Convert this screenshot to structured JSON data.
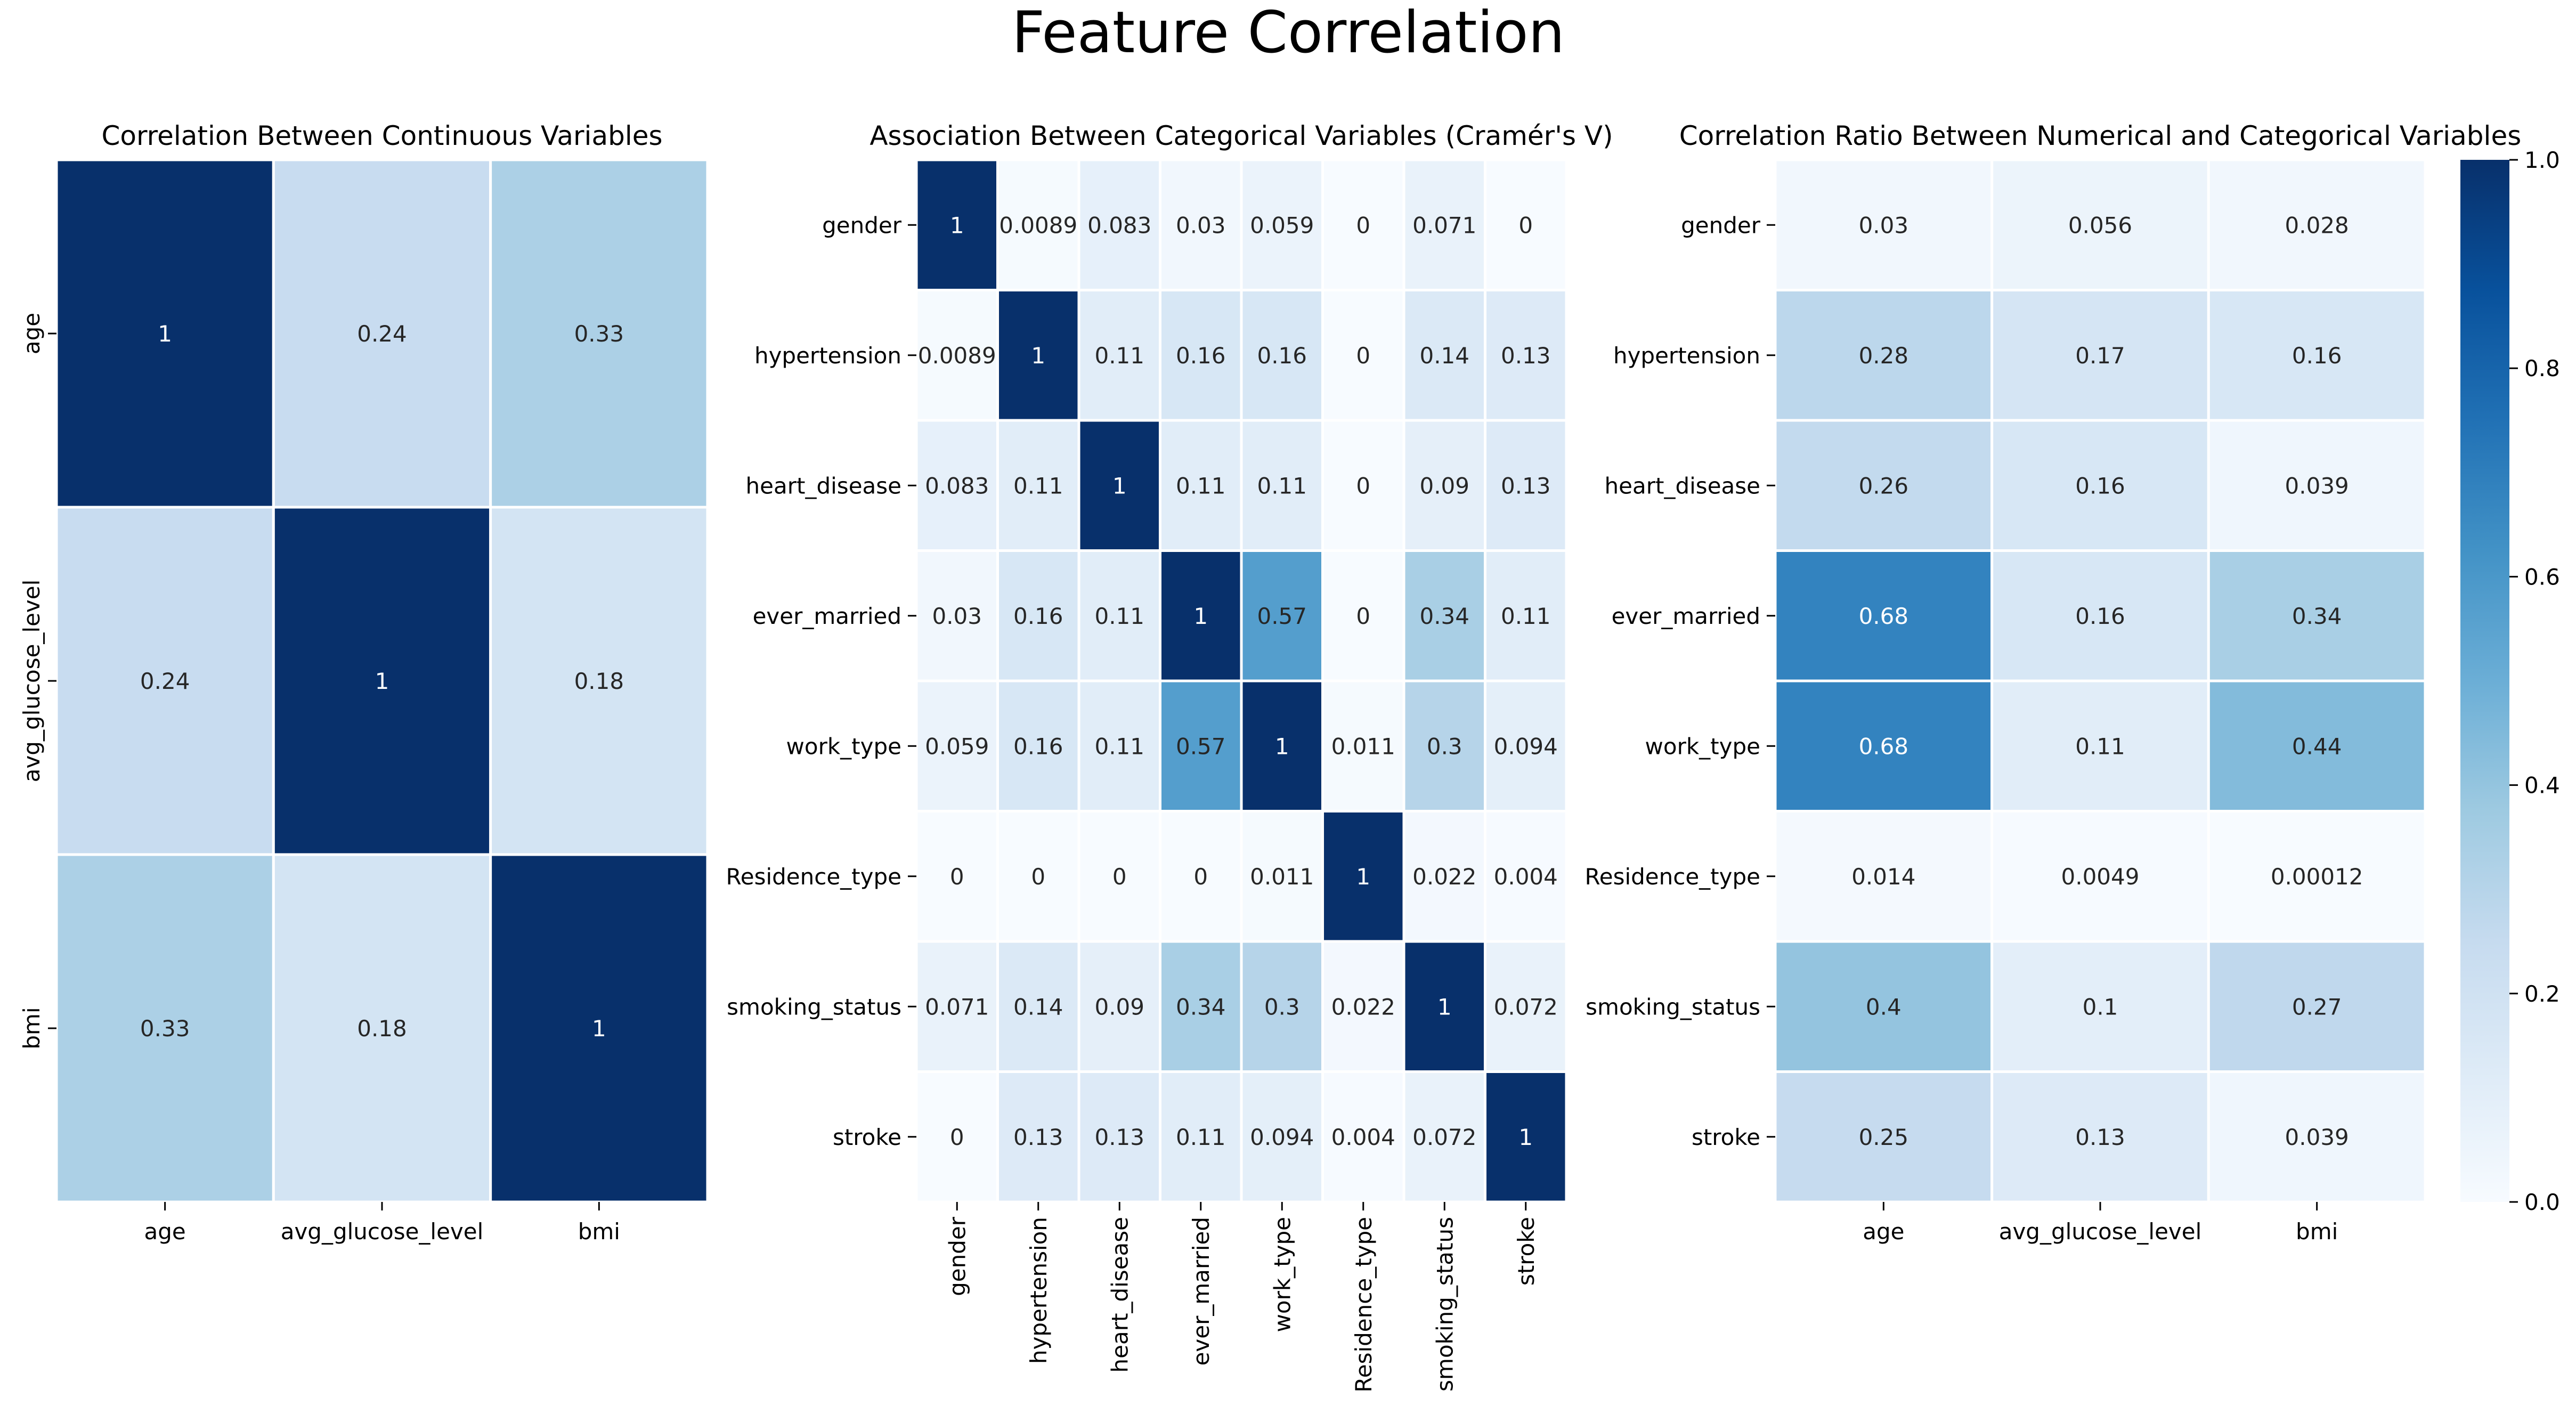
{
  "figure": {
    "title": "Feature Correlation"
  },
  "chart_data": [
    {
      "type": "heatmap",
      "title": "Correlation Between Continuous Variables",
      "x_categories": [
        "age",
        "avg_glucose_level",
        "bmi"
      ],
      "y_categories": [
        "age",
        "avg_glucose_level",
        "bmi"
      ],
      "values": [
        [
          1,
          0.24,
          0.33
        ],
        [
          0.24,
          1,
          0.18
        ],
        [
          0.33,
          0.18,
          1
        ]
      ],
      "labels": [
        [
          "1",
          "0.24",
          "0.33"
        ],
        [
          "0.24",
          "1",
          "0.18"
        ],
        [
          "0.33",
          "0.18",
          "1"
        ]
      ],
      "vmin": 0,
      "vmax": 1,
      "colormap": "Blues",
      "xlabel": "",
      "ylabel": ""
    },
    {
      "type": "heatmap",
      "title": "Association Between Categorical Variables (Cramér's V)",
      "x_categories": [
        "gender",
        "hypertension",
        "heart_disease",
        "ever_married",
        "work_type",
        "Residence_type",
        "smoking_status",
        "stroke"
      ],
      "y_categories": [
        "gender",
        "hypertension",
        "heart_disease",
        "ever_married",
        "work_type",
        "Residence_type",
        "smoking_status",
        "stroke"
      ],
      "values": [
        [
          1,
          0.0089,
          0.083,
          0.03,
          0.059,
          0,
          0.071,
          0
        ],
        [
          0.0089,
          1,
          0.11,
          0.16,
          0.16,
          0,
          0.14,
          0.13
        ],
        [
          0.083,
          0.11,
          1,
          0.11,
          0.11,
          0,
          0.09,
          0.13
        ],
        [
          0.03,
          0.16,
          0.11,
          1,
          0.57,
          0,
          0.34,
          0.11
        ],
        [
          0.059,
          0.16,
          0.11,
          0.57,
          1,
          0.011,
          0.3,
          0.094
        ],
        [
          0,
          0,
          0,
          0,
          0.011,
          1,
          0.022,
          0.004
        ],
        [
          0.071,
          0.14,
          0.09,
          0.34,
          0.3,
          0.022,
          1,
          0.072
        ],
        [
          0,
          0.13,
          0.13,
          0.11,
          0.094,
          0.004,
          0.072,
          1
        ]
      ],
      "labels": [
        [
          "1",
          "0.0089",
          "0.083",
          "0.03",
          "0.059",
          "0",
          "0.071",
          "0"
        ],
        [
          "0.0089",
          "1",
          "0.11",
          "0.16",
          "0.16",
          "0",
          "0.14",
          "0.13"
        ],
        [
          "0.083",
          "0.11",
          "1",
          "0.11",
          "0.11",
          "0",
          "0.09",
          "0.13"
        ],
        [
          "0.03",
          "0.16",
          "0.11",
          "1",
          "0.57",
          "0",
          "0.34",
          "0.11"
        ],
        [
          "0.059",
          "0.16",
          "0.11",
          "0.57",
          "1",
          "0.011",
          "0.3",
          "0.094"
        ],
        [
          "0",
          "0",
          "0",
          "0",
          "0.011",
          "1",
          "0.022",
          "0.004"
        ],
        [
          "0.071",
          "0.14",
          "0.09",
          "0.34",
          "0.3",
          "0.022",
          "1",
          "0.072"
        ],
        [
          "0",
          "0.13",
          "0.13",
          "0.11",
          "0.094",
          "0.004",
          "0.072",
          "1"
        ]
      ],
      "vmin": 0,
      "vmax": 1,
      "colormap": "Blues",
      "xlabel": "",
      "ylabel": ""
    },
    {
      "type": "heatmap",
      "title": "Correlation Ratio Between Numerical and Categorical Variables",
      "x_categories": [
        "age",
        "avg_glucose_level",
        "bmi"
      ],
      "y_categories": [
        "gender",
        "hypertension",
        "heart_disease",
        "ever_married",
        "work_type",
        "Residence_type",
        "smoking_status",
        "stroke"
      ],
      "values": [
        [
          0.03,
          0.056,
          0.028
        ],
        [
          0.28,
          0.17,
          0.16
        ],
        [
          0.26,
          0.16,
          0.039
        ],
        [
          0.68,
          0.16,
          0.34
        ],
        [
          0.68,
          0.11,
          0.44
        ],
        [
          0.014,
          0.0049,
          0.00012
        ],
        [
          0.4,
          0.1,
          0.27
        ],
        [
          0.25,
          0.13,
          0.039
        ]
      ],
      "labels": [
        [
          "0.03",
          "0.056",
          "0.028"
        ],
        [
          "0.28",
          "0.17",
          "0.16"
        ],
        [
          "0.26",
          "0.16",
          "0.039"
        ],
        [
          "0.68",
          "0.16",
          "0.34"
        ],
        [
          "0.68",
          "0.11",
          "0.44"
        ],
        [
          "0.014",
          "0.0049",
          "0.00012"
        ],
        [
          "0.4",
          "0.1",
          "0.27"
        ],
        [
          "0.25",
          "0.13",
          "0.039"
        ]
      ],
      "vmin": 0,
      "vmax": 1,
      "colormap": "Blues",
      "xlabel": "",
      "ylabel": "",
      "colorbar": {
        "ticks": [
          "0.0",
          "0.2",
          "0.4",
          "0.6",
          "0.8",
          "1.0"
        ],
        "range": [
          0,
          1
        ]
      }
    }
  ]
}
